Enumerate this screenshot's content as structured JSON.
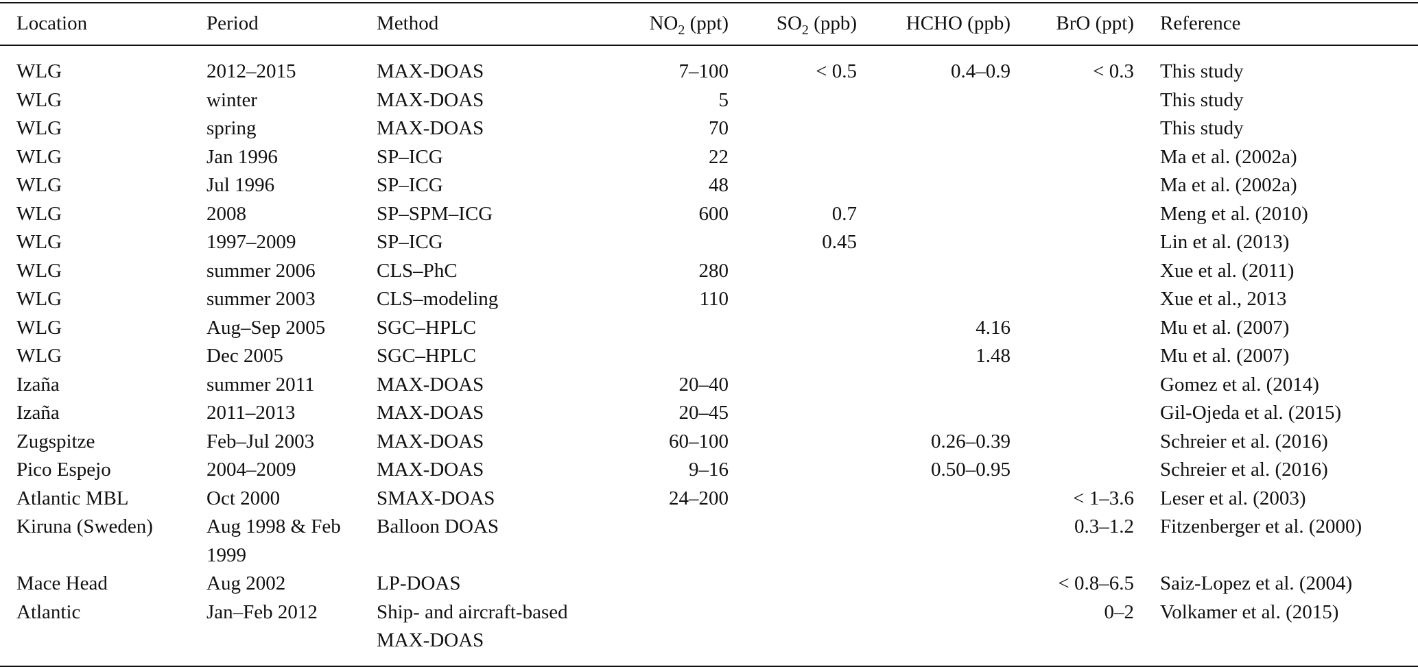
{
  "table": {
    "headers": {
      "location": "Location",
      "period": "Period",
      "method": "Method",
      "no2_pre": "NO",
      "no2_sub": "2",
      "no2_post": " (ppt)",
      "so2_pre": "SO",
      "so2_sub": "2",
      "so2_post": " (ppb)",
      "hcho": "HCHO (ppb)",
      "bro": "BrO (ppt)",
      "reference": "Reference"
    },
    "rows": [
      {
        "location": "WLG",
        "period": "2012–2015",
        "method": "MAX-DOAS",
        "no2": "7–100",
        "so2": "< 0.5",
        "hcho": "0.4–0.9",
        "bro": "< 0.3",
        "reference": "This study"
      },
      {
        "location": "WLG",
        "period": "winter",
        "method": "MAX-DOAS",
        "no2": "5",
        "so2": "",
        "hcho": "",
        "bro": "",
        "reference": "This study"
      },
      {
        "location": "WLG",
        "period": "spring",
        "method": "MAX-DOAS",
        "no2": "70",
        "so2": "",
        "hcho": "",
        "bro": "",
        "reference": "This study"
      },
      {
        "location": "WLG",
        "period": "Jan 1996",
        "method": "SP–ICG",
        "no2": "22",
        "so2": "",
        "hcho": "",
        "bro": "",
        "reference": "Ma et al. (2002a)"
      },
      {
        "location": "WLG",
        "period": "Jul 1996",
        "method": "SP–ICG",
        "no2": "48",
        "so2": "",
        "hcho": "",
        "bro": "",
        "reference": "Ma et al. (2002a)"
      },
      {
        "location": "WLG",
        "period": "2008",
        "method": "SP–SPM–ICG",
        "no2": "600",
        "so2": "0.7",
        "hcho": "",
        "bro": "",
        "reference": "Meng et al. (2010)"
      },
      {
        "location": "WLG",
        "period": "1997–2009",
        "method": "SP–ICG",
        "no2": "",
        "so2": "0.45",
        "hcho": "",
        "bro": "",
        "reference": "Lin et al. (2013)"
      },
      {
        "location": "WLG",
        "period": "summer 2006",
        "method": "CLS–PhC",
        "no2": "280",
        "so2": "",
        "hcho": "",
        "bro": "",
        "reference": "Xue et al. (2011)"
      },
      {
        "location": "WLG",
        "period": "summer 2003",
        "method": "CLS–modeling",
        "no2": "110",
        "so2": "",
        "hcho": "",
        "bro": "",
        "reference": "Xue et al., 2013"
      },
      {
        "location": "WLG",
        "period": "Aug–Sep 2005",
        "method": "SGC–HPLC",
        "no2": "",
        "so2": "",
        "hcho": "4.16",
        "bro": "",
        "reference": "Mu et al. (2007)"
      },
      {
        "location": "WLG",
        "period": "Dec 2005",
        "method": "SGC–HPLC",
        "no2": "",
        "so2": "",
        "hcho": "1.48",
        "bro": "",
        "reference": "Mu et al. (2007)"
      },
      {
        "location": "Izaña",
        "period": "summer 2011",
        "method": "MAX-DOAS",
        "no2": "20–40",
        "so2": "",
        "hcho": "",
        "bro": "",
        "reference": "Gomez et al. (2014)"
      },
      {
        "location": "Izaña",
        "period": "2011–2013",
        "method": "MAX-DOAS",
        "no2": "20–45",
        "so2": "",
        "hcho": "",
        "bro": "",
        "reference": "Gil-Ojeda et al. (2015)"
      },
      {
        "location": "Zugspitze",
        "period": "Feb–Jul 2003",
        "method": "MAX-DOAS",
        "no2": "60–100",
        "so2": "",
        "hcho": "0.26–0.39",
        "bro": "",
        "reference": "Schreier et al. (2016)"
      },
      {
        "location": "Pico Espejo",
        "period": "2004–2009",
        "method": "MAX-DOAS",
        "no2": "9–16",
        "so2": "",
        "hcho": "0.50–0.95",
        "bro": "",
        "reference": "Schreier et al. (2016)"
      },
      {
        "location": "Atlantic MBL",
        "period": "Oct 2000",
        "method": "SMAX-DOAS",
        "no2": "24–200",
        "so2": "",
        "hcho": "",
        "bro": "< 1–3.6",
        "reference": "Leser et al. (2003)"
      },
      {
        "location": "Kiruna (Sweden)",
        "period": "Aug 1998 & Feb 1999",
        "method": "Balloon DOAS",
        "no2": "",
        "so2": "",
        "hcho": "",
        "bro": "0.3–1.2",
        "reference": "Fitzenberger et al. (2000)"
      },
      {
        "location": "Mace Head",
        "period": "Aug 2002",
        "method": "LP-DOAS",
        "no2": "",
        "so2": "",
        "hcho": "",
        "bro": "< 0.8–6.5",
        "reference": "Saiz-Lopez et al. (2004)"
      },
      {
        "location": "Atlantic",
        "period": "Jan–Feb 2012",
        "method": "Ship- and aircraft-based MAX-DOAS",
        "no2": "",
        "so2": "",
        "hcho": "",
        "bro": "0–2",
        "reference": "Volkamer et al. (2015)"
      }
    ]
  }
}
